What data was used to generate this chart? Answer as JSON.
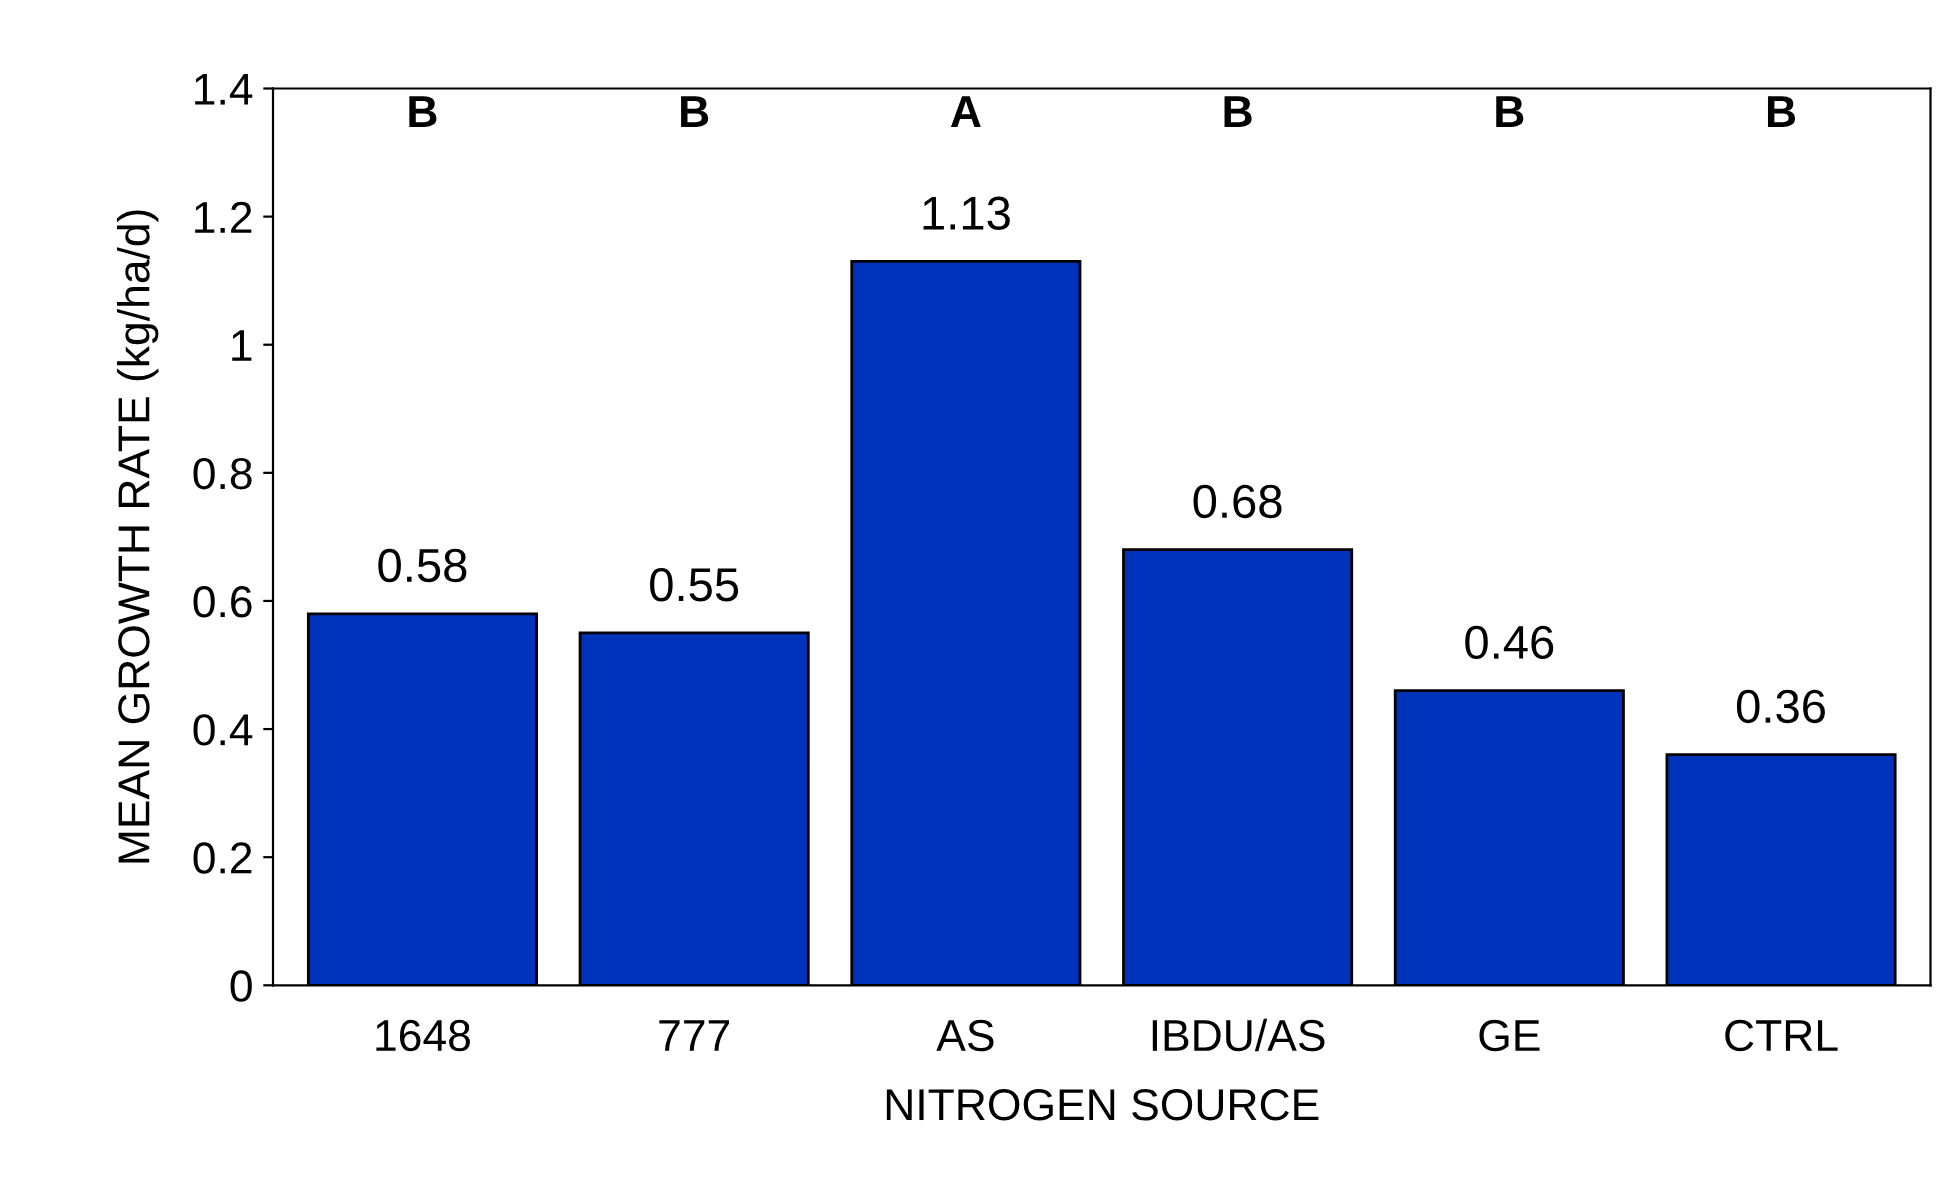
{
  "chart_data": {
    "type": "bar",
    "xlabel": "NITROGEN SOURCE",
    "ylabel": "MEAN GROWTH RATE (kg/ha/d)",
    "categories": [
      "1648",
      "777",
      "AS",
      "IBDU/AS",
      "GE",
      "CTRL"
    ],
    "values": [
      0.58,
      0.55,
      1.13,
      0.68,
      0.46,
      0.36
    ],
    "color": "#0033bb",
    "data_labels": true,
    "ylim": [
      0,
      1.4
    ],
    "yticks": [
      0,
      0.2,
      0.4,
      0.6,
      0.8,
      1,
      1.2,
      1.4
    ],
    "grid": false,
    "legend": false,
    "annotations": [
      "B",
      "B",
      "A",
      "B",
      "B",
      "B"
    ]
  }
}
